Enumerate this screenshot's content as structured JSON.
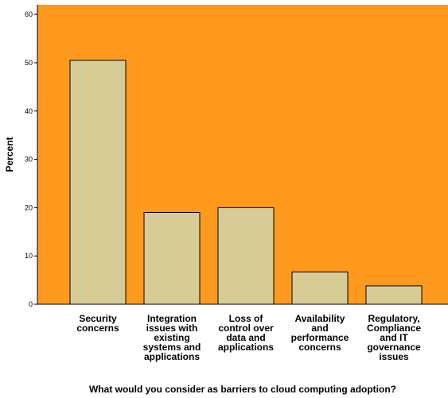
{
  "chart_data": {
    "type": "bar",
    "title": "",
    "xlabel": "What would you consider as barriers to cloud computing adoption?",
    "ylabel": "Percent",
    "ylim": [
      0,
      62
    ],
    "yticks": [
      "0",
      "10",
      "20",
      "30",
      "40",
      "50",
      "60"
    ],
    "grid": false,
    "colors": {
      "plot_background": "#FF9A1E",
      "bar_fill": "#D8CC96",
      "bar_stroke": "#000000"
    },
    "categories": [
      [
        "Security",
        "concerns"
      ],
      [
        "Integration",
        "issues with",
        "existing",
        "systems and",
        "applications"
      ],
      [
        "Loss of",
        "control over",
        "data and",
        "applications"
      ],
      [
        "Availability",
        "and",
        "performance",
        "concerns"
      ],
      [
        "Regulatory,",
        "Compliance",
        "and IT",
        "governance",
        "issues"
      ]
    ],
    "values": [
      50.5,
      19.0,
      20.0,
      6.7,
      3.8
    ]
  }
}
